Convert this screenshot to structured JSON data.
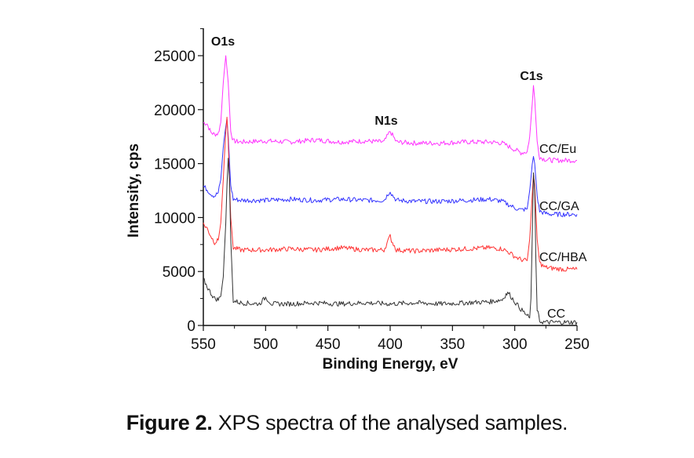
{
  "chart_data": {
    "type": "line",
    "title": "",
    "xlabel": "Binding Energy, eV",
    "ylabel": "Intensity, cps",
    "xlim": [
      550,
      250
    ],
    "ylim": [
      0,
      27500
    ],
    "x_reversed": true,
    "grid": false,
    "x_ticks": [
      550,
      500,
      450,
      400,
      350,
      300,
      250
    ],
    "x_tick_labels": [
      "550",
      "500",
      "450",
      "400",
      "350",
      "300",
      "250"
    ],
    "y_ticks": [
      0,
      5000,
      10000,
      15000,
      20000,
      25000
    ],
    "y_tick_labels": [
      "0",
      "5000",
      "10000",
      "15000",
      "20000",
      "25000"
    ],
    "annotations": [
      {
        "text": "O1s",
        "x": 532,
        "y": 26500
      },
      {
        "text": "N1s",
        "x": 400,
        "y": 19000
      },
      {
        "text": "C1s",
        "x": 285,
        "y": 23500
      }
    ],
    "series": [
      {
        "name": "CC/Eu",
        "color": "#ff33ff",
        "x": [
          550,
          547,
          544,
          541,
          538,
          536,
          534,
          532,
          530,
          528,
          526,
          520,
          500,
          480,
          460,
          440,
          420,
          405,
          401,
          400,
          399,
          395,
          380,
          360,
          340,
          320,
          310,
          305,
          300,
          295,
          290,
          288,
          286,
          285,
          284,
          282,
          280,
          276,
          270,
          260,
          250
        ],
        "y": [
          18800,
          18700,
          17900,
          17700,
          17800,
          18800,
          22500,
          25000,
          22500,
          18000,
          17100,
          17000,
          17100,
          17000,
          17200,
          17000,
          17100,
          17000,
          17800,
          18000,
          17800,
          17000,
          16900,
          16900,
          17000,
          17000,
          16900,
          16600,
          16300,
          16000,
          16100,
          17500,
          20500,
          22200,
          21000,
          17000,
          15600,
          15400,
          15300,
          15300,
          15300
        ]
      },
      {
        "name": "CC/GA",
        "color": "#3333ff",
        "x": [
          550,
          547,
          544,
          541,
          538,
          536,
          534,
          532,
          531,
          530,
          528,
          526,
          520,
          500,
          480,
          460,
          440,
          420,
          405,
          401,
          400,
          399,
          395,
          380,
          360,
          340,
          320,
          310,
          305,
          300,
          295,
          290,
          288,
          286,
          285,
          284,
          282,
          280,
          276,
          270,
          260,
          250
        ],
        "y": [
          12900,
          12600,
          12200,
          12000,
          12300,
          13500,
          16500,
          18500,
          19000,
          17500,
          13000,
          11700,
          11600,
          11600,
          11700,
          11600,
          11700,
          11600,
          11600,
          12300,
          12500,
          12200,
          11600,
          11500,
          11500,
          11600,
          11700,
          11500,
          11200,
          10900,
          10700,
          10800,
          12500,
          14800,
          15700,
          15000,
          12000,
          10600,
          10400,
          10300,
          10300,
          10300
        ]
      },
      {
        "name": "CC/HBA",
        "color": "#ff3333",
        "x": [
          550,
          547,
          544,
          541,
          538,
          536,
          534,
          532,
          531,
          530,
          528,
          526,
          520,
          500,
          480,
          460,
          440,
          420,
          405,
          401,
          400,
          399,
          395,
          380,
          360,
          340,
          320,
          310,
          305,
          300,
          295,
          290,
          288,
          286,
          285,
          284,
          282,
          280,
          276,
          270,
          260,
          250
        ],
        "y": [
          9400,
          9000,
          8300,
          7700,
          7900,
          9500,
          13500,
          18000,
          19300,
          17000,
          10000,
          7200,
          7000,
          7000,
          7100,
          7000,
          7200,
          7000,
          7000,
          8000,
          8300,
          7900,
          7000,
          6900,
          7000,
          7100,
          7200,
          7100,
          6800,
          6400,
          6100,
          6000,
          8000,
          12000,
          14000,
          13000,
          8000,
          5800,
          5400,
          5300,
          5200,
          5200
        ]
      },
      {
        "name": "CC",
        "color": "#333333",
        "x": [
          550,
          547,
          544,
          541,
          538,
          536,
          534,
          532,
          531,
          530,
          529,
          528,
          526,
          520,
          505,
          500,
          495,
          480,
          460,
          440,
          420,
          400,
          380,
          360,
          340,
          320,
          310,
          307,
          305,
          300,
          295,
          290,
          288,
          287,
          286,
          285,
          284,
          283,
          282,
          280,
          276,
          270,
          260,
          250
        ],
        "y": [
          4300,
          3600,
          3000,
          2500,
          2400,
          2700,
          4500,
          9500,
          13000,
          15500,
          13500,
          8000,
          2300,
          2100,
          2000,
          2600,
          2000,
          2000,
          2100,
          2000,
          2100,
          2000,
          2100,
          2000,
          2100,
          2200,
          2400,
          2900,
          3000,
          2200,
          1500,
          900,
          700,
          2500,
          8000,
          14000,
          12500,
          6000,
          1500,
          400,
          300,
          300,
          300,
          300
        ]
      }
    ]
  },
  "caption": {
    "label": "Figure 2.",
    "text": "XPS spectra of the analysed samples."
  }
}
